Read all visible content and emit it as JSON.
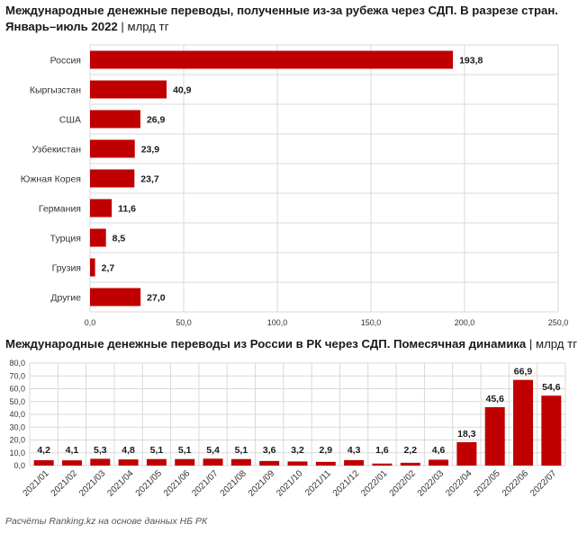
{
  "chart1": {
    "title_line1": "Международные денежные переводы, полученные из-за рубежа через СДП. В разрезе стран.",
    "title_line2": "Январь–июль 2022",
    "unit": "млрд тг"
  },
  "chart2": {
    "title": "Международные денежные переводы из России в РК через СДП. Помесячная динамика",
    "unit": "млрд тг"
  },
  "source": "Расчёты Ranking.kz на основе данных НБ РК",
  "colors": {
    "bar": "#c00000",
    "grid": "#d9d9d9"
  },
  "chart_data": [
    {
      "type": "bar",
      "orientation": "horizontal",
      "title": "Международные денежные переводы, полученные из-за рубежа через СДП. В разрезе стран. Январь–июль 2022",
      "unit": "млрд тг",
      "categories": [
        "Россия",
        "Кыргызстан",
        "США",
        "Узбекистан",
        "Южная Корея",
        "Германия",
        "Турция",
        "Грузия",
        "Другие"
      ],
      "values": [
        193.8,
        40.9,
        26.9,
        23.9,
        23.7,
        11.6,
        8.5,
        2.7,
        27.0
      ],
      "labels": [
        "193,8",
        "40,9",
        "26,9",
        "23,9",
        "23,7",
        "11,6",
        "8,5",
        "2,7",
        "27,0"
      ],
      "xlim": [
        0,
        250
      ],
      "ticks": [
        "0,0",
        "50,0",
        "100,0",
        "150,0",
        "200,0",
        "250,0"
      ],
      "grid": true
    },
    {
      "type": "bar",
      "orientation": "vertical",
      "title": "Международные денежные переводы из России в РК через СДП. Помесячная динамика",
      "unit": "млрд тг",
      "categories": [
        "2021/01",
        "2021/02",
        "2021/03",
        "2021/04",
        "2021/05",
        "2021/06",
        "2021/07",
        "2021/08",
        "2021/09",
        "2021/10",
        "2021/11",
        "2021/12",
        "2022/01",
        "2022/02",
        "2022/03",
        "2022/04",
        "2022/05",
        "2022/06",
        "2022/07"
      ],
      "values": [
        4.2,
        4.1,
        5.3,
        4.8,
        5.1,
        5.1,
        5.4,
        5.1,
        3.6,
        3.2,
        2.9,
        4.3,
        1.6,
        2.2,
        4.6,
        18.3,
        45.6,
        66.9,
        54.6
      ],
      "labels": [
        "4,2",
        "4,1",
        "5,3",
        "4,8",
        "5,1",
        "5,1",
        "5,4",
        "5,1",
        "3,6",
        "3,2",
        "2,9",
        "4,3",
        "1,6",
        "2,2",
        "4,6",
        "18,3",
        "45,6",
        "66,9",
        "54,6"
      ],
      "ylim": [
        0,
        80
      ],
      "ticks": [
        "0,0",
        "10,0",
        "20,0",
        "30,0",
        "40,0",
        "50,0",
        "60,0",
        "70,0",
        "80,0"
      ],
      "grid": true
    }
  ]
}
